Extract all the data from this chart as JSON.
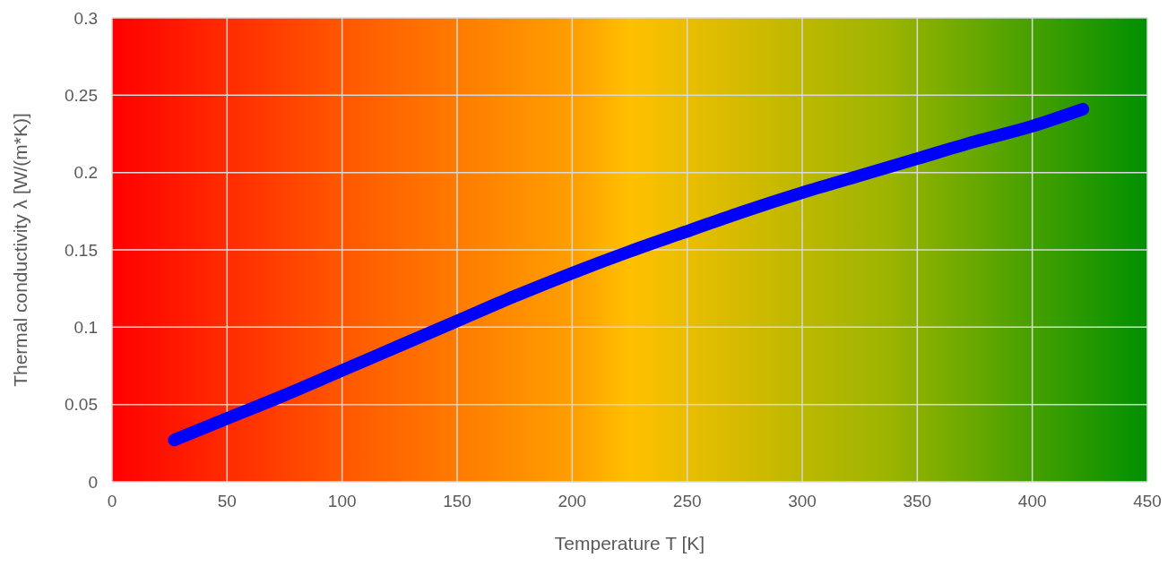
{
  "chart_data": {
    "type": "line",
    "xlabel": "Temperature T [K]",
    "ylabel": "Thermal conductivity λ [W/(m*K)]",
    "x": [
      27,
      50,
      75,
      100,
      125,
      150,
      175,
      200,
      225,
      250,
      275,
      300,
      325,
      350,
      375,
      400,
      422
    ],
    "series": [
      {
        "color": "#0000ff",
        "values": [
          0.027,
          0.041,
          0.056,
          0.072,
          0.088,
          0.104,
          0.12,
          0.135,
          0.149,
          0.162,
          0.175,
          0.187,
          0.198,
          0.209,
          0.22,
          0.23,
          0.241
        ]
      }
    ],
    "xlim": [
      0,
      450
    ],
    "xticks": [
      0,
      50,
      100,
      150,
      200,
      250,
      300,
      350,
      400,
      450
    ],
    "ylim": [
      0,
      0.3
    ],
    "yticks": [
      0,
      0.05,
      0.1,
      0.15,
      0.2,
      0.25,
      0.3
    ],
    "grid": true,
    "marker": "none",
    "line_style": "solid"
  }
}
